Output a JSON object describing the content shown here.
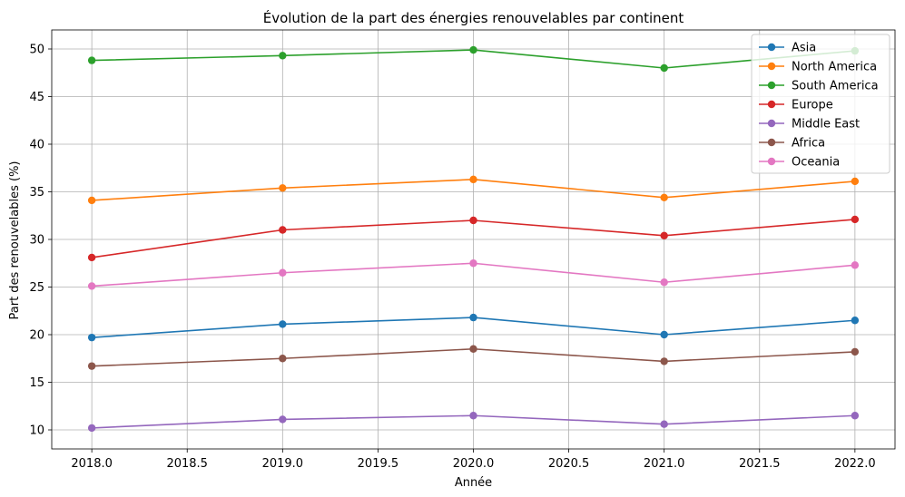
{
  "chart_data": {
    "type": "line",
    "title": "Évolution de la part des énergies renouvelables par continent",
    "xlabel": "Année",
    "ylabel": "Part des renouvelables (%)",
    "x": [
      2018,
      2019,
      2020,
      2021,
      2022
    ],
    "xlim": [
      2017.79,
      2022.21
    ],
    "ylim": [
      8.0,
      52.0
    ],
    "xticks": [
      2018.0,
      2018.5,
      2019.0,
      2019.5,
      2020.0,
      2020.5,
      2021.0,
      2021.5,
      2022.0
    ],
    "xtick_labels": [
      "2018.0",
      "2018.5",
      "2019.0",
      "2019.5",
      "2020.0",
      "2020.5",
      "2021.0",
      "2021.5",
      "2022.0"
    ],
    "yticks": [
      10,
      15,
      20,
      25,
      30,
      35,
      40,
      45,
      50
    ],
    "ytick_labels": [
      "10",
      "15",
      "20",
      "25",
      "30",
      "35",
      "40",
      "45",
      "50"
    ],
    "grid": true,
    "legend_position": "top-right",
    "series": [
      {
        "name": "Asia",
        "color": "#1f77b4",
        "values": [
          19.7,
          21.1,
          21.8,
          20.0,
          21.5
        ]
      },
      {
        "name": "North America",
        "color": "#ff7f0e",
        "values": [
          34.1,
          35.4,
          36.3,
          34.4,
          36.1
        ]
      },
      {
        "name": "South America",
        "color": "#2ca02c",
        "values": [
          48.8,
          49.3,
          49.9,
          48.0,
          49.8
        ]
      },
      {
        "name": "Europe",
        "color": "#d62728",
        "values": [
          28.1,
          31.0,
          32.0,
          30.4,
          32.1
        ]
      },
      {
        "name": "Middle East",
        "color": "#9467bd",
        "values": [
          10.2,
          11.1,
          11.5,
          10.6,
          11.5
        ]
      },
      {
        "name": "Africa",
        "color": "#8c564b",
        "values": [
          16.7,
          17.5,
          18.5,
          17.2,
          18.2
        ]
      },
      {
        "name": "Oceania",
        "color": "#e377c2",
        "values": [
          25.1,
          26.5,
          27.5,
          25.5,
          27.3
        ]
      }
    ]
  }
}
